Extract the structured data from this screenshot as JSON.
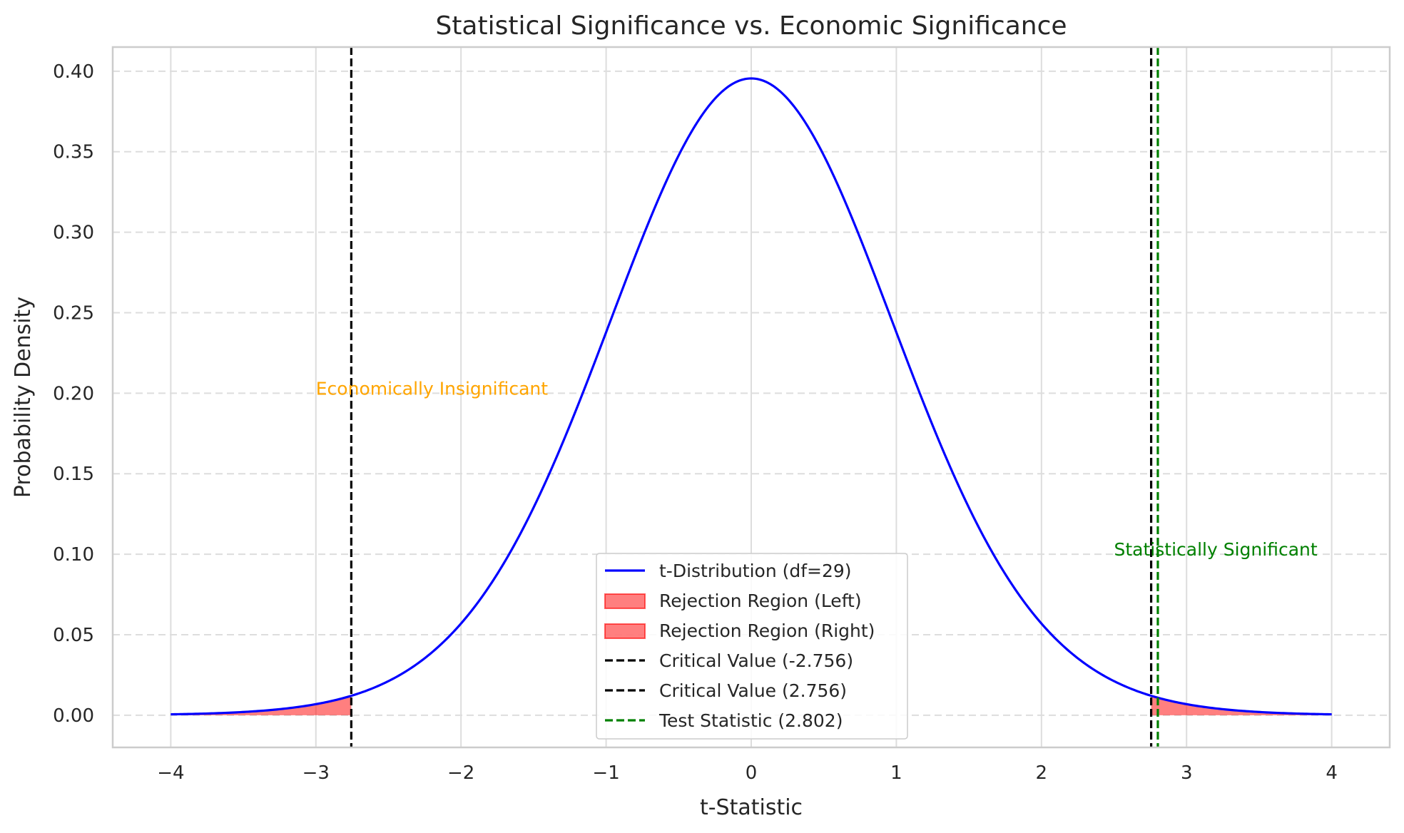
{
  "chart_data": {
    "type": "line",
    "title": "Statistical Significance vs. Economic Significance",
    "xlabel": "t-Statistic",
    "ylabel": "Probability Density",
    "xlim": [
      -4.4,
      4.4
    ],
    "ylim": [
      -0.02,
      0.415
    ],
    "xticks": [
      -4,
      -3,
      -2,
      -1,
      0,
      1,
      2,
      3,
      4
    ],
    "xtick_labels": [
      "−4",
      "−3",
      "−2",
      "−1",
      "0",
      "1",
      "2",
      "3",
      "4"
    ],
    "yticks": [
      0.0,
      0.05,
      0.1,
      0.15,
      0.2,
      0.25,
      0.3,
      0.35,
      0.4
    ],
    "ytick_labels": [
      "0.00",
      "0.05",
      "0.10",
      "0.15",
      "0.20",
      "0.25",
      "0.30",
      "0.35",
      "0.40"
    ],
    "grid": true,
    "legend_position": "bottom-center",
    "series": [
      {
        "name": "t-Distribution (df=29)",
        "color": "#0000ff",
        "x": [
          -4.0,
          -3.75,
          -3.5,
          -3.25,
          -3.0,
          -2.756,
          -2.5,
          -2.25,
          -2.0,
          -1.75,
          -1.5,
          -1.25,
          -1.0,
          -0.75,
          -0.5,
          -0.25,
          0.0,
          0.25,
          0.5,
          0.75,
          1.0,
          1.25,
          1.5,
          1.75,
          2.0,
          2.25,
          2.5,
          2.756,
          3.0,
          3.25,
          3.5,
          3.75,
          4.0
        ],
        "y": [
          0.0005,
          0.0012,
          0.0019,
          0.0035,
          0.0063,
          0.0116,
          0.0187,
          0.0318,
          0.0546,
          0.0855,
          0.1275,
          0.1807,
          0.2374,
          0.2985,
          0.3492,
          0.3824,
          0.3956,
          0.3824,
          0.3492,
          0.2985,
          0.2374,
          0.1807,
          0.1275,
          0.0855,
          0.0546,
          0.0318,
          0.0187,
          0.0116,
          0.0063,
          0.0035,
          0.0019,
          0.0012,
          0.0005
        ]
      }
    ],
    "rejection_regions": [
      {
        "name": "Rejection Region (Left)",
        "from": -4.0,
        "to": -2.756,
        "color": "#ff0000",
        "opacity": 0.5
      },
      {
        "name": "Rejection Region (Right)",
        "from": 2.756,
        "to": 4.0,
        "color": "#ff0000",
        "opacity": 0.5
      }
    ],
    "vlines": [
      {
        "name": "Critical Value (-2.756)",
        "x": -2.756,
        "color": "#000000"
      },
      {
        "name": "Critical Value (2.756)",
        "x": 2.756,
        "color": "#000000"
      },
      {
        "name": "Test Statistic (2.802)",
        "x": 2.802,
        "color": "#008000"
      }
    ],
    "annotations": [
      {
        "text": "Economically Insignificant",
        "x": -3.0,
        "y": 0.2,
        "color": "#ffa500"
      },
      {
        "text": "Statistically Significant",
        "x": 2.5,
        "y": 0.1,
        "color": "#008000"
      }
    ]
  }
}
